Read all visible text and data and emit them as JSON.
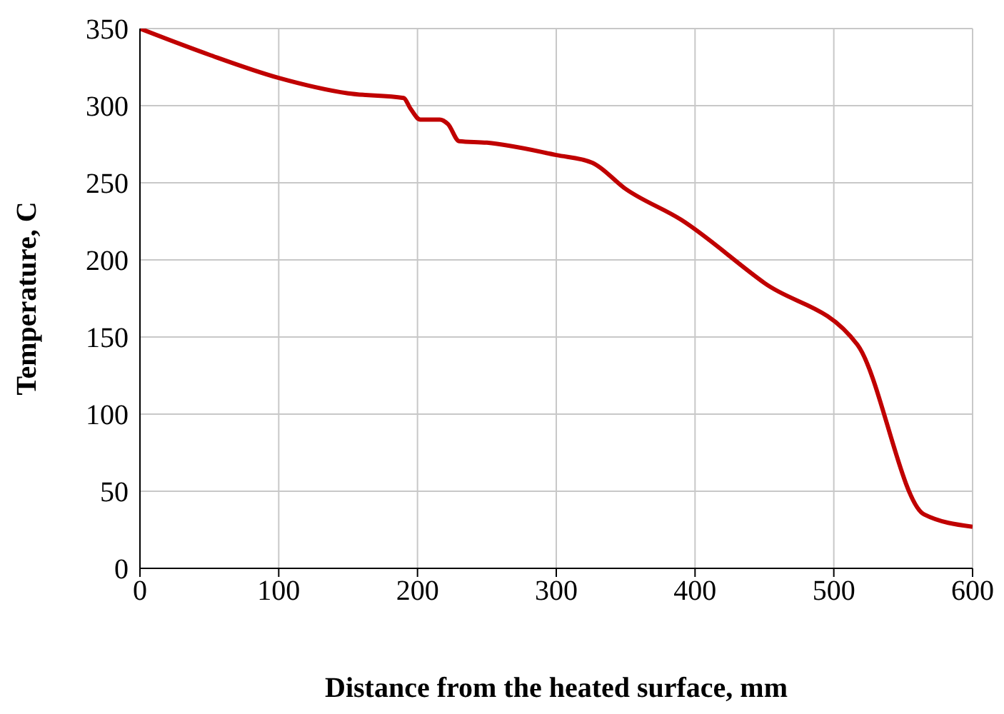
{
  "chart_data": {
    "type": "line",
    "xlabel": "Distance from the heated surface, mm",
    "ylabel": "Temperature,  C",
    "x": [
      0,
      50,
      100,
      150,
      190,
      195,
      202,
      216,
      222,
      230,
      250,
      300,
      326,
      350,
      390,
      450,
      517,
      565,
      600
    ],
    "series": [
      {
        "color": "#c00000",
        "values": [
          350,
          333,
          318,
          308,
          305,
          298,
          291,
          291,
          288,
          277,
          276,
          268,
          263,
          246,
          226,
          185,
          145,
          35,
          27
        ]
      }
    ],
    "xlim": [
      0,
      600
    ],
    "xticks": [
      0,
      100,
      200,
      300,
      400,
      500,
      600
    ],
    "ylim": [
      0,
      350
    ],
    "yticks": [
      0,
      50,
      100,
      150,
      200,
      250,
      300,
      350
    ],
    "grid": true,
    "legend": false,
    "marker": "none",
    "line_style": "solid"
  }
}
